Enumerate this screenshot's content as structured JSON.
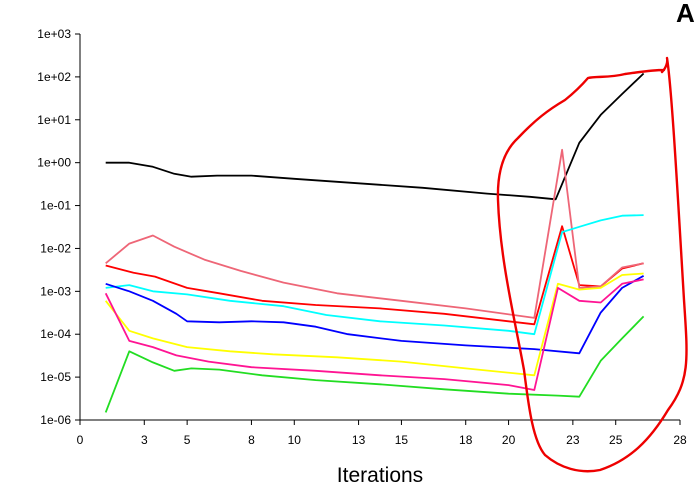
{
  "corner_title": "A",
  "chart_data": {
    "type": "line",
    "title": "",
    "xlabel": "Iterations",
    "ylabel": "",
    "yscale": "log",
    "xlim": [
      0,
      28
    ],
    "ylim_exponent": [
      -6,
      3
    ],
    "x_ticks": [
      0,
      3,
      5,
      8,
      10,
      13,
      15,
      18,
      20,
      23,
      25,
      28
    ],
    "y_ticks": [
      "1e-06",
      "1e-05",
      "1e-04",
      "1e-03",
      "1e-02",
      "1e-01",
      "1e+00",
      "1e+01",
      "1e+02",
      "1e+03"
    ],
    "grid": false,
    "legend": "none",
    "series": [
      {
        "color": "#000000",
        "points": [
          [
            1.2,
            1.0
          ],
          [
            2.3,
            1.0
          ],
          [
            3.4,
            0.8
          ],
          [
            4.4,
            0.55
          ],
          [
            5.2,
            0.47
          ],
          [
            6.4,
            0.5
          ],
          [
            8.0,
            0.5
          ],
          [
            10.0,
            0.42
          ],
          [
            13.0,
            0.33
          ],
          [
            16.0,
            0.26
          ],
          [
            19.0,
            0.19
          ],
          [
            21.0,
            0.16
          ],
          [
            22.2,
            0.14
          ],
          [
            23.3,
            2.9
          ],
          [
            24.3,
            13
          ],
          [
            25.3,
            40
          ],
          [
            26.3,
            120
          ]
        ]
      },
      {
        "color": "#ff0000",
        "points": [
          [
            1.2,
            0.004
          ],
          [
            2.5,
            0.0027
          ],
          [
            3.5,
            0.0022
          ],
          [
            5.0,
            0.0012
          ],
          [
            6.5,
            0.0009
          ],
          [
            8.5,
            0.0006
          ],
          [
            11.0,
            0.00048
          ],
          [
            14.0,
            0.0004
          ],
          [
            17.0,
            0.0003
          ],
          [
            20.0,
            0.0002
          ],
          [
            21.2,
            0.00017
          ],
          [
            22.5,
            0.033
          ],
          [
            23.3,
            0.0014
          ],
          [
            24.3,
            0.0013
          ],
          [
            25.3,
            0.0034
          ],
          [
            26.3,
            0.0045
          ]
        ]
      },
      {
        "color": "#ee6677",
        "points": [
          [
            1.2,
            0.0045
          ],
          [
            2.3,
            0.013
          ],
          [
            3.4,
            0.02
          ],
          [
            4.4,
            0.011
          ],
          [
            5.8,
            0.0055
          ],
          [
            7.5,
            0.003
          ],
          [
            9.5,
            0.0016
          ],
          [
            12.0,
            0.0009
          ],
          [
            15.0,
            0.0006
          ],
          [
            18.0,
            0.0004
          ],
          [
            21.2,
            0.00024
          ],
          [
            22.5,
            2.0
          ],
          [
            23.3,
            0.0012
          ],
          [
            24.3,
            0.0013
          ],
          [
            25.3,
            0.0036
          ],
          [
            26.3,
            0.0045
          ]
        ]
      },
      {
        "color": "#00ffff",
        "points": [
          [
            1.2,
            0.0012
          ],
          [
            2.3,
            0.0014
          ],
          [
            3.4,
            0.001
          ],
          [
            5.0,
            0.00085
          ],
          [
            7.0,
            0.0006
          ],
          [
            9.5,
            0.00045
          ],
          [
            11.5,
            0.00028
          ],
          [
            14.0,
            0.0002
          ],
          [
            17.0,
            0.00016
          ],
          [
            20.0,
            0.00012
          ],
          [
            21.2,
            0.0001
          ],
          [
            22.5,
            0.024
          ],
          [
            23.3,
            0.032
          ],
          [
            24.3,
            0.045
          ],
          [
            25.3,
            0.058
          ],
          [
            26.3,
            0.06
          ]
        ]
      },
      {
        "color": "#0000ff",
        "points": [
          [
            1.2,
            0.0015
          ],
          [
            2.3,
            0.001
          ],
          [
            3.4,
            0.0006
          ],
          [
            4.5,
            0.0003
          ],
          [
            5.0,
            0.0002
          ],
          [
            6.5,
            0.00019
          ],
          [
            8.0,
            0.0002
          ],
          [
            9.5,
            0.00019
          ],
          [
            11.0,
            0.00015
          ],
          [
            12.5,
            0.0001
          ],
          [
            15.0,
            7e-05
          ],
          [
            18.0,
            5.5e-05
          ],
          [
            21.2,
            4.5e-05
          ],
          [
            23.3,
            3.6e-05
          ],
          [
            24.3,
            0.00032
          ],
          [
            25.3,
            0.0012
          ],
          [
            26.3,
            0.0023
          ]
        ]
      },
      {
        "color": "#ffff00",
        "points": [
          [
            1.2,
            0.0006
          ],
          [
            2.3,
            0.00012
          ],
          [
            3.4,
            8e-05
          ],
          [
            5.0,
            5e-05
          ],
          [
            7.0,
            4e-05
          ],
          [
            9.0,
            3.4e-05
          ],
          [
            12.0,
            2.9e-05
          ],
          [
            15.0,
            2.3e-05
          ],
          [
            18.0,
            1.6e-05
          ],
          [
            21.2,
            1.1e-05
          ],
          [
            22.3,
            0.0015
          ],
          [
            23.3,
            0.0011
          ],
          [
            24.3,
            0.0012
          ],
          [
            25.3,
            0.0024
          ],
          [
            26.3,
            0.0026
          ]
        ]
      },
      {
        "color": "#ff1493",
        "points": [
          [
            1.2,
            0.0009
          ],
          [
            2.3,
            7e-05
          ],
          [
            3.4,
            5e-05
          ],
          [
            4.5,
            3.2e-05
          ],
          [
            6.0,
            2.3e-05
          ],
          [
            8.0,
            1.7e-05
          ],
          [
            11.0,
            1.4e-05
          ],
          [
            14.0,
            1.1e-05
          ],
          [
            17.0,
            9e-06
          ],
          [
            20.0,
            6.5e-06
          ],
          [
            21.2,
            5e-06
          ],
          [
            22.3,
            0.0012
          ],
          [
            23.3,
            0.0006
          ],
          [
            24.3,
            0.00055
          ],
          [
            25.3,
            0.0015
          ],
          [
            26.3,
            0.0019
          ]
        ]
      },
      {
        "color": "#22dd22",
        "points": [
          [
            1.2,
            1.5e-06
          ],
          [
            2.3,
            4e-05
          ],
          [
            3.4,
            2.2e-05
          ],
          [
            4.4,
            1.4e-05
          ],
          [
            5.2,
            1.6e-05
          ],
          [
            6.5,
            1.5e-05
          ],
          [
            8.5,
            1.1e-05
          ],
          [
            11.0,
            8.5e-06
          ],
          [
            14.0,
            6.8e-06
          ],
          [
            17.0,
            5.2e-06
          ],
          [
            20.0,
            4.1e-06
          ],
          [
            22.3,
            3.7e-06
          ],
          [
            23.3,
            3.5e-06
          ],
          [
            24.3,
            2.4e-05
          ],
          [
            25.3,
            8e-05
          ],
          [
            26.3,
            0.00026
          ]
        ]
      }
    ]
  },
  "annotation": {
    "type": "hand-drawn-loop",
    "color": "#ee0000"
  }
}
